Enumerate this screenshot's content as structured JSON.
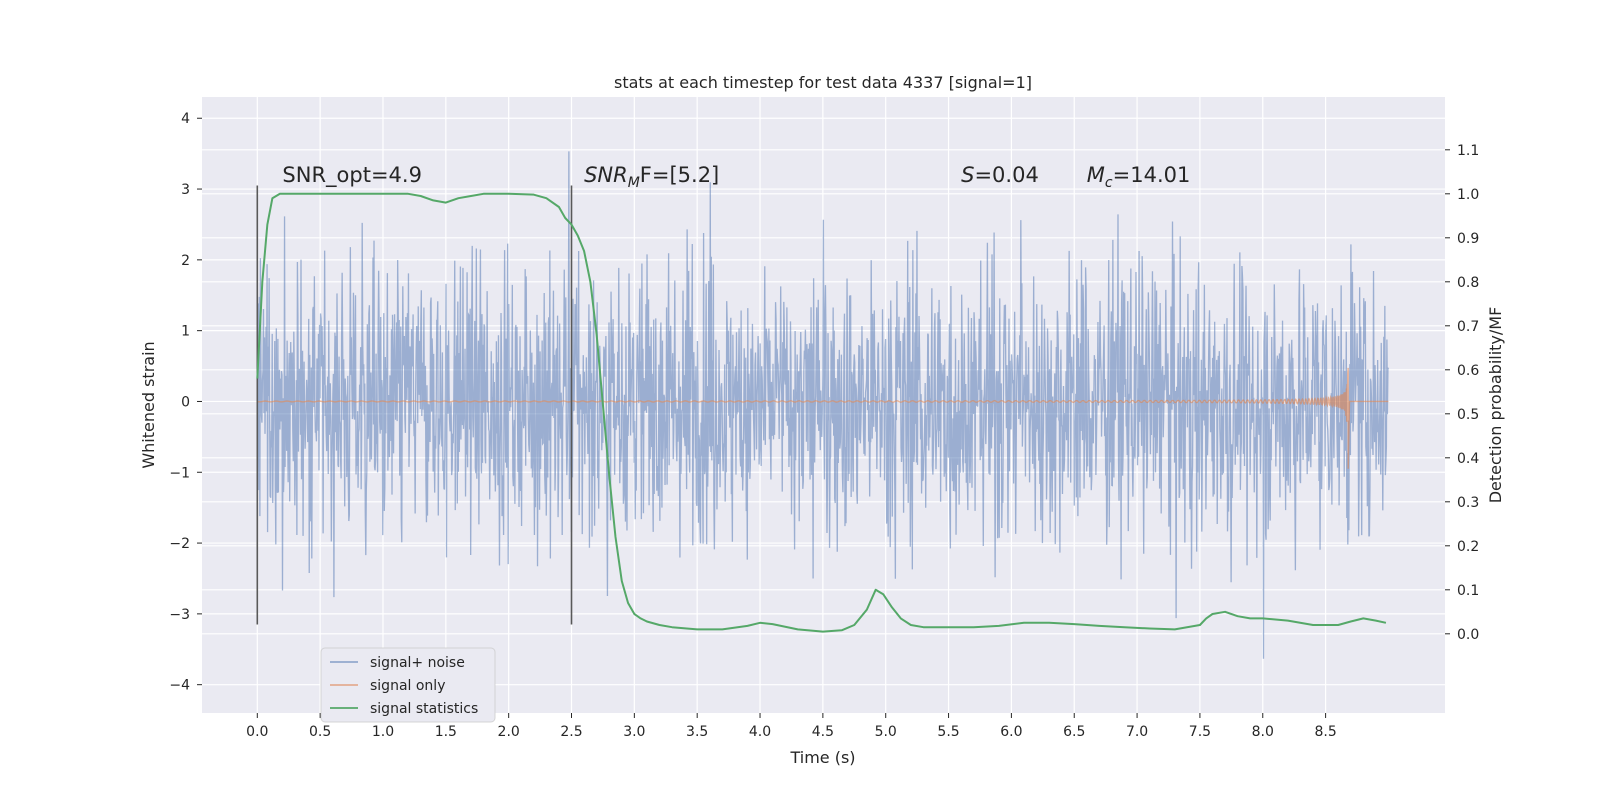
{
  "chart_data": {
    "type": "line",
    "title": "stats at each timestep for test data 4337 [signal=1]",
    "xlabel": "Time (s)",
    "ylabel": "Whitened strain",
    "ylabel_right": "Detection probability/MF",
    "xlim": [
      -0.44,
      9.45
    ],
    "ylim": [
      -4.4,
      4.3
    ],
    "ylim_right": [
      -0.18,
      1.22
    ],
    "x_ticks": [
      0.0,
      0.5,
      1.0,
      1.5,
      2.0,
      2.5,
      3.0,
      3.5,
      4.0,
      4.5,
      5.0,
      5.5,
      6.0,
      6.5,
      7.0,
      7.5,
      8.0,
      8.5
    ],
    "x_tick_labels": [
      "0.0",
      "0.5",
      "1.0",
      "1.5",
      "2.0",
      "2.5",
      "3.0",
      "3.5",
      "4.0",
      "4.5",
      "5.0",
      "5.5",
      "6.0",
      "6.5",
      "7.0",
      "7.5",
      "8.0",
      "8.5"
    ],
    "y_ticks": [
      -4,
      -3,
      -2,
      -1,
      0,
      1,
      2,
      3,
      4
    ],
    "y_tick_labels": [
      "−4",
      "−3",
      "−2",
      "−1",
      "0",
      "1",
      "2",
      "3",
      "4"
    ],
    "y2_ticks": [
      0.0,
      0.1,
      0.2,
      0.3,
      0.4,
      0.5,
      0.6,
      0.7,
      0.8,
      0.9,
      1.0,
      1.1
    ],
    "y2_tick_labels": [
      "0.0",
      "0.1",
      "0.2",
      "0.3",
      "0.4",
      "0.5",
      "0.6",
      "0.7",
      "0.8",
      "0.9",
      "1.0",
      "1.1"
    ],
    "grid": true,
    "legend_position": "bottom-left",
    "colors": {
      "noise": "#4c72b0",
      "signal": "#dd8452",
      "stat": "#55a868",
      "vline": "#595959",
      "background": "#eaeaf2",
      "grid": "#ffffff"
    },
    "series": [
      {
        "name": "signal+ noise",
        "key": "noise",
        "description": "whitened strain, dense noise from 0.0 s to 9.0 s, envelope about ±2.5",
        "t_range": [
          0.0,
          9.0
        ],
        "typical_amplitude": 2.2,
        "peak_max": 3.9,
        "peak_min": -4.0
      },
      {
        "name": "signal only",
        "key": "signal",
        "description": "chirp waveform growing toward merger at about 8.68 s",
        "t_range": [
          0.0,
          8.68
        ],
        "merger_time": 8.68,
        "peak_amplitude": 0.8
      },
      {
        "name": "signal statistics",
        "key": "stat",
        "axis": "right",
        "x": [
          0.0,
          0.04,
          0.08,
          0.12,
          0.18,
          0.25,
          0.35,
          0.5,
          0.8,
          1.0,
          1.2,
          1.3,
          1.4,
          1.5,
          1.6,
          1.7,
          1.8,
          2.0,
          2.2,
          2.3,
          2.4,
          2.45,
          2.5,
          2.55,
          2.6,
          2.65,
          2.7,
          2.75,
          2.8,
          2.85,
          2.9,
          2.95,
          3.0,
          3.05,
          3.1,
          3.2,
          3.3,
          3.5,
          3.7,
          3.9,
          4.0,
          4.1,
          4.3,
          4.5,
          4.65,
          4.75,
          4.85,
          4.92,
          4.98,
          5.05,
          5.12,
          5.2,
          5.3,
          5.5,
          5.7,
          5.9,
          6.1,
          6.3,
          6.5,
          6.7,
          6.9,
          7.1,
          7.3,
          7.5,
          7.55,
          7.6,
          7.7,
          7.8,
          7.9,
          8.0,
          8.2,
          8.4,
          8.6,
          8.7,
          8.8,
          8.9,
          8.98
        ],
        "values": [
          0.58,
          0.8,
          0.93,
          0.99,
          1.0,
          1.0,
          1.0,
          1.0,
          1.0,
          1.0,
          1.0,
          0.995,
          0.985,
          0.98,
          0.99,
          0.995,
          1.0,
          1.0,
          0.998,
          0.99,
          0.97,
          0.945,
          0.93,
          0.905,
          0.87,
          0.8,
          0.68,
          0.52,
          0.36,
          0.22,
          0.12,
          0.07,
          0.045,
          0.035,
          0.028,
          0.02,
          0.015,
          0.01,
          0.01,
          0.018,
          0.025,
          0.022,
          0.01,
          0.005,
          0.008,
          0.02,
          0.055,
          0.1,
          0.09,
          0.06,
          0.035,
          0.02,
          0.015,
          0.015,
          0.015,
          0.018,
          0.025,
          0.025,
          0.022,
          0.018,
          0.015,
          0.012,
          0.01,
          0.02,
          0.035,
          0.045,
          0.05,
          0.04,
          0.035,
          0.035,
          0.03,
          0.02,
          0.02,
          0.028,
          0.035,
          0.03,
          0.025
        ]
      }
    ],
    "vlines": [
      0.0,
      2.5
    ],
    "vline_range": [
      -3.15,
      3.05
    ],
    "annotations": [
      {
        "key": "snr_opt",
        "text": "SNR_opt=4.9",
        "x": 0.2,
        "y": 3.1
      },
      {
        "key": "snr_mf",
        "prefix": "SNR",
        "sub": "M",
        "suffix": "F=[5.2]",
        "x": 2.6,
        "y": 3.1
      },
      {
        "key": "s",
        "prefix": "S",
        "suffix": "=0.04",
        "x": 5.6,
        "y": 3.1
      },
      {
        "key": "mc",
        "prefix": "M",
        "sub": "c",
        "suffix": "=14.01",
        "x": 6.6,
        "y": 3.1
      }
    ]
  }
}
